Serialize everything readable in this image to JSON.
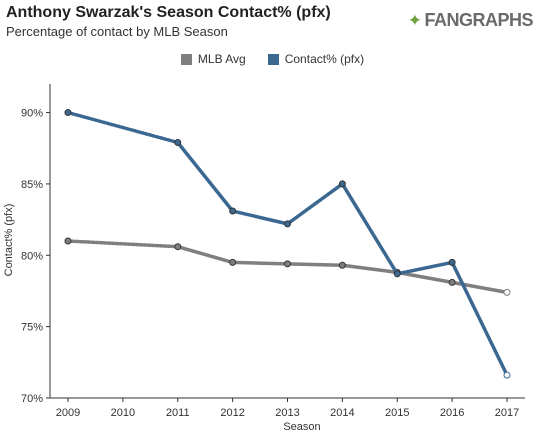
{
  "header": {
    "title": "Anthony Swarzak's Season Contact% (pfx)",
    "subtitle": "Percentage of contact by MLB Season",
    "logo_text": "FANGRAPHS"
  },
  "chart_data": {
    "type": "line",
    "title": "Anthony Swarzak's Season Contact% (pfx)",
    "subtitle": "Percentage of contact by MLB Season",
    "xlabel": "Season",
    "ylabel": "Contact% (pfx)",
    "x_ticks": [
      "2009",
      "2010",
      "2011",
      "2012",
      "2013",
      "2014",
      "2015",
      "2016",
      "2017"
    ],
    "xlim": [
      2009,
      2017
    ],
    "ylim": [
      70,
      92
    ],
    "y_ticks": [
      70,
      75,
      80,
      85,
      90
    ],
    "y_tick_labels": [
      "70%",
      "75%",
      "80%",
      "85%",
      "90%"
    ],
    "legend_position": "top-center",
    "series": [
      {
        "name": "MLB Avg",
        "color": "#7f7f7f",
        "points": [
          {
            "x": 2009,
            "y": 81.0
          },
          {
            "x": 2011,
            "y": 80.6
          },
          {
            "x": 2012,
            "y": 79.5
          },
          {
            "x": 2013,
            "y": 79.4
          },
          {
            "x": 2014,
            "y": 79.3
          },
          {
            "x": 2015,
            "y": 78.8
          },
          {
            "x": 2016,
            "y": 78.1
          },
          {
            "x": 2017,
            "y": 77.4
          }
        ]
      },
      {
        "name": "Contact% (pfx)",
        "color": "#3b6891",
        "points": [
          {
            "x": 2009,
            "y": 90.0
          },
          {
            "x": 2011,
            "y": 87.9
          },
          {
            "x": 2012,
            "y": 83.1
          },
          {
            "x": 2013,
            "y": 82.2
          },
          {
            "x": 2014,
            "y": 85.0
          },
          {
            "x": 2015,
            "y": 78.7
          },
          {
            "x": 2016,
            "y": 79.5
          },
          {
            "x": 2017,
            "y": 71.6
          }
        ]
      }
    ],
    "gap_between": [
      2009,
      2011
    ]
  }
}
